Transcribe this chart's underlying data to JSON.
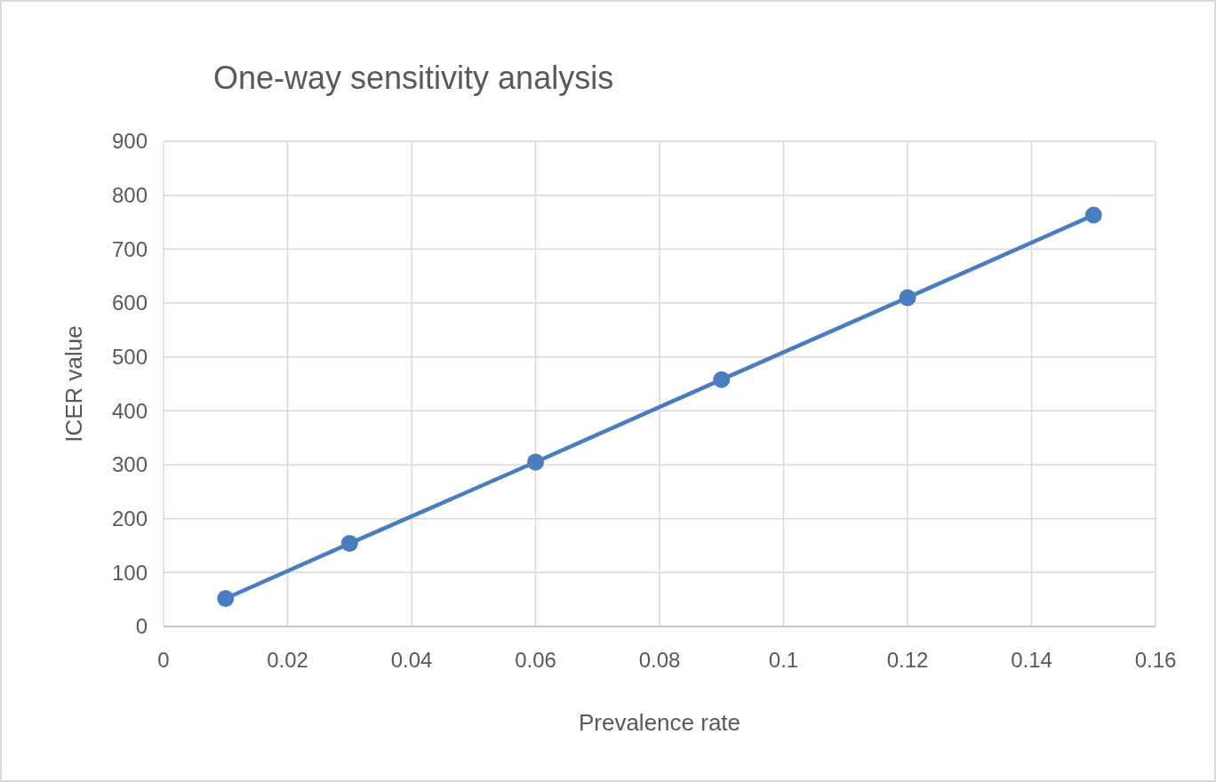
{
  "chart_data": {
    "type": "line",
    "title": "One-way sensitivity analysis",
    "xlabel": "Prevalence rate",
    "ylabel": "ICER value",
    "x": [
      0.01,
      0.03,
      0.06,
      0.09,
      0.12,
      0.15
    ],
    "series": [
      {
        "color": "#4a7dc0",
        "values": [
          52,
          154,
          305,
          458,
          610,
          763
        ]
      }
    ],
    "xlim": [
      0,
      0.16
    ],
    "xticks": [
      0,
      0.02,
      0.04,
      0.06,
      0.08,
      0.1,
      0.12,
      0.14,
      0.16
    ],
    "ylim": [
      0,
      900
    ],
    "yticks": [
      0,
      100,
      200,
      300,
      400,
      500,
      600,
      700,
      800,
      900
    ],
    "grid": true,
    "marker": "circle",
    "line_style": "solid"
  }
}
